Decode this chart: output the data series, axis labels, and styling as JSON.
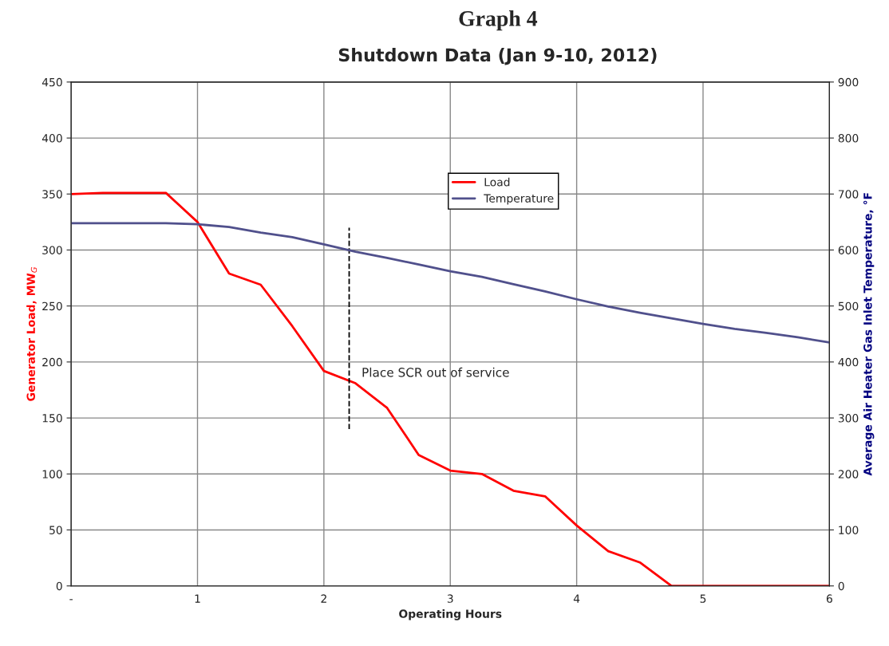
{
  "chart_data": {
    "type": "line",
    "title": "Graph 4",
    "subtitle": "Shutdown Data (Jan 9-10, 2012)",
    "xlabel": "Operating Hours",
    "ylabel": "Generator Load, MW$_{G}$",
    "y2label": "Average Air Heater Gas Inlet Temperature, °F",
    "x": [
      0,
      0.25,
      0.5,
      0.75,
      1,
      1.25,
      1.5,
      1.75,
      2,
      2.25,
      2.5,
      2.75,
      3,
      3.25,
      3.5,
      3.75,
      4,
      4.25,
      4.5,
      4.75,
      5,
      5.25,
      5.5,
      5.75,
      6
    ],
    "series": [
      {
        "name": "Load",
        "color": "#ff0000",
        "values": [
          350,
          351,
          351,
          351,
          325,
          279,
          269,
          232,
          192,
          181,
          159,
          117,
          103,
          100,
          85,
          80,
          54,
          31,
          21,
          0,
          0,
          0,
          0,
          0,
          0
        ]
      },
      {
        "name": "Temperature",
        "color": "#50508c",
        "axis": "y2",
        "values": [
          648,
          648,
          648,
          648,
          646,
          641,
          631,
          623,
          610,
          597,
          586,
          574,
          562,
          552,
          539,
          526,
          512,
          499,
          488,
          478,
          468,
          459,
          452,
          444,
          435
        ]
      },
      {
        "color": "#000000",
        "line_style": "dashed",
        "x": [
          2.2,
          2.2
        ],
        "values": [
          140,
          320
        ]
      }
    ],
    "annotations": [
      "Place SCR out of service"
    ],
    "xlim": [
      0,
      6
    ],
    "xticks": [
      {
        "value": 0,
        "label": "-"
      },
      1,
      2,
      3,
      4,
      5,
      6
    ],
    "ylim": [
      0,
      450
    ],
    "yticks": [
      0,
      50,
      100,
      150,
      200,
      250,
      300,
      350,
      400,
      450
    ],
    "y2lim": [
      0,
      900
    ],
    "y2ticks": [
      0,
      100,
      200,
      300,
      400,
      500,
      600,
      700,
      800,
      900
    ],
    "grid": true,
    "legend": "top"
  }
}
